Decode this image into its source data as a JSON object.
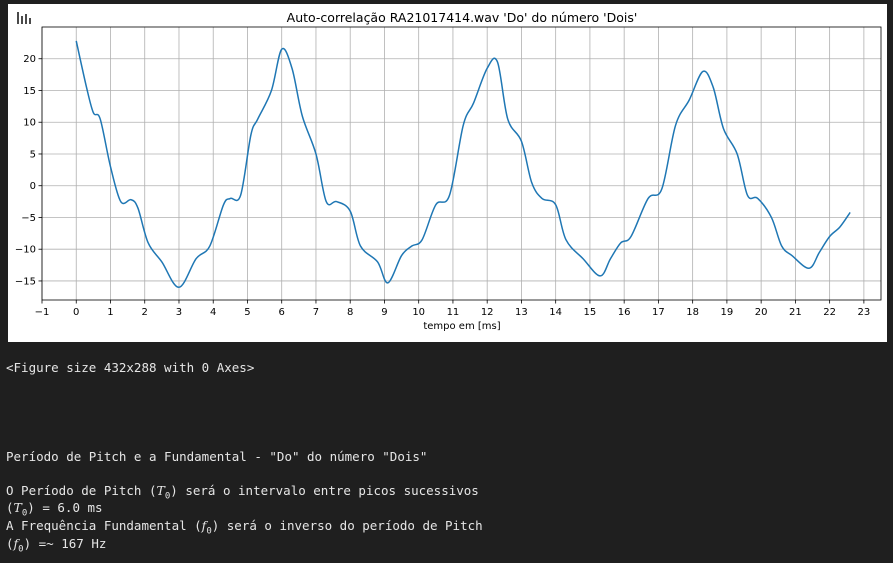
{
  "chart_data": {
    "type": "line",
    "title": "Auto-correlação RA21017414.wav 'Do' do número 'Dois'",
    "xlabel": "tempo em [ms]",
    "ylabel": "",
    "xlim": [
      -1.0,
      23.5
    ],
    "ylim": [
      -18.0,
      25.0
    ],
    "xticks": [
      -1,
      0,
      1,
      2,
      3,
      4,
      5,
      6,
      7,
      8,
      9,
      10,
      11,
      12,
      13,
      14,
      15,
      16,
      17,
      18,
      19,
      20,
      21,
      22,
      23
    ],
    "yticks": [
      -15,
      -10,
      -5,
      0,
      5,
      10,
      15,
      20
    ],
    "grid": true,
    "series": [
      {
        "color": "#1f77b4",
        "x": [
          0.0,
          0.3,
          0.5,
          0.7,
          1.0,
          1.3,
          1.6,
          1.8,
          2.1,
          2.5,
          3.0,
          3.5,
          3.9,
          4.3,
          4.5,
          4.8,
          5.1,
          5.3,
          5.7,
          6.0,
          6.3,
          6.6,
          7.0,
          7.3,
          7.6,
          8.0,
          8.3,
          8.8,
          9.1,
          9.5,
          9.8,
          10.1,
          10.5,
          10.9,
          11.3,
          11.6,
          12.0,
          12.3,
          12.6,
          13.0,
          13.3,
          13.6,
          14.0,
          14.3,
          14.8,
          15.3,
          15.6,
          15.9,
          16.2,
          16.7,
          17.1,
          17.5,
          17.9,
          18.3,
          18.6,
          18.9,
          19.3,
          19.6,
          19.9,
          20.3,
          20.6,
          20.9,
          21.4,
          21.7,
          22.0,
          22.3,
          22.6
        ],
        "y": [
          22.8,
          15.5,
          11.5,
          10.5,
          3.0,
          -2.5,
          -2.2,
          -3.5,
          -9.0,
          -12.0,
          -16.0,
          -11.5,
          -9.5,
          -3.0,
          -2.0,
          -1.5,
          8.0,
          10.5,
          15.0,
          21.5,
          18.5,
          11.0,
          5.0,
          -2.5,
          -2.5,
          -4.0,
          -9.5,
          -12.0,
          -15.3,
          -11.0,
          -9.5,
          -8.5,
          -3.0,
          -1.5,
          9.5,
          13.0,
          18.5,
          19.5,
          10.5,
          7.0,
          0.5,
          -2.0,
          -3.0,
          -8.5,
          -11.5,
          -14.2,
          -11.5,
          -9.0,
          -8.0,
          -2.0,
          -0.5,
          9.5,
          13.5,
          18.0,
          15.5,
          9.0,
          5.0,
          -1.5,
          -2.0,
          -5.0,
          -9.5,
          -11.0,
          -13.0,
          -10.5,
          -8.0,
          -6.5,
          -4.2
        ]
      }
    ]
  },
  "output": {
    "figure_repr": "<Figure size 432x288 with 0 Axes>",
    "heading": "Período de Pitch e a Fundamental - \"Do\" do número \"Dois\"",
    "line1_pre": "O Período de Pitch (",
    "line1_sym": "T",
    "line1_sub": "0",
    "line1_post": ") será o intervalo entre picos sucessivos",
    "line2_sym": "T",
    "line2_sub": "0",
    "line2_post": ") = 6.0 ms",
    "line3_pre": "A Frequência Fundamental (",
    "line3_sym": "f",
    "line3_sub": "0",
    "line3_post": ") será o inverso do período de Pitch",
    "line4_sym": "f",
    "line4_sub": "0",
    "line4_post": ") =~ 167 Hz"
  }
}
